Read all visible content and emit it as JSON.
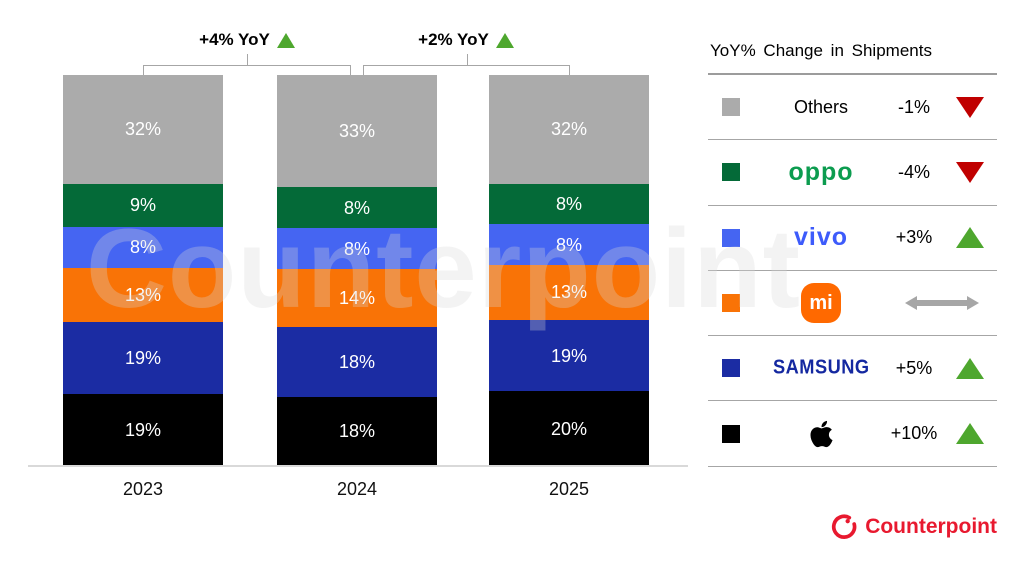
{
  "chart_data": {
    "type": "bar",
    "subtype": "stacked-100-percent",
    "categories": [
      "2023",
      "2024",
      "2025"
    ],
    "unit": "%",
    "ylim": [
      0,
      100
    ],
    "grid": false,
    "legend_position": "right",
    "series": [
      {
        "name": "Apple",
        "color": "#000000",
        "values": [
          19,
          18,
          20
        ]
      },
      {
        "name": "Samsung",
        "color": "#1b2ca3",
        "values": [
          19,
          18,
          19
        ]
      },
      {
        "name": "Xiaomi",
        "color": "#f97306",
        "values": [
          13,
          14,
          13
        ]
      },
      {
        "name": "vivo",
        "color": "#4565f2",
        "values": [
          8,
          8,
          8
        ]
      },
      {
        "name": "OPPO",
        "color": "#046a38",
        "values": [
          9,
          8,
          8
        ]
      },
      {
        "name": "Others",
        "color": "#ababab",
        "values": [
          32,
          33,
          32
        ]
      }
    ],
    "annotations": [
      {
        "label": "+4% YoY",
        "direction": "up",
        "between": [
          "2023",
          "2024"
        ]
      },
      {
        "label": "+2% YoY",
        "direction": "up",
        "between": [
          "2024",
          "2025"
        ]
      }
    ]
  },
  "legend": {
    "title": "YoY% Change in Shipments",
    "rows": [
      {
        "brand": "Others",
        "display": "Others",
        "change": "-1%",
        "direction": "down"
      },
      {
        "brand": "OPPO",
        "display": "oppo",
        "change": "-4%",
        "direction": "down"
      },
      {
        "brand": "vivo",
        "display": "vivo",
        "change": "+3%",
        "direction": "up"
      },
      {
        "brand": "Xiaomi",
        "display": "mi",
        "change": "",
        "direction": "flat"
      },
      {
        "brand": "Samsung",
        "display": "SAMSUNG",
        "change": "+5%",
        "direction": "up"
      },
      {
        "brand": "Apple",
        "display": "",
        "change": "+10%",
        "direction": "up"
      }
    ]
  },
  "watermark": "Counterpoint",
  "footer": {
    "brand": "Counterpoint"
  },
  "colors": {
    "apple": "#000000",
    "samsung": "#1b2ca3",
    "xiaomi": "#f97306",
    "vivo": "#4565f2",
    "oppo": "#046a38",
    "others": "#ababab",
    "up_triangle": "#4ea72e",
    "down_triangle": "#c00000",
    "flat_arrow": "#a6a6a6",
    "counterpoint_red": "#e8192f"
  }
}
